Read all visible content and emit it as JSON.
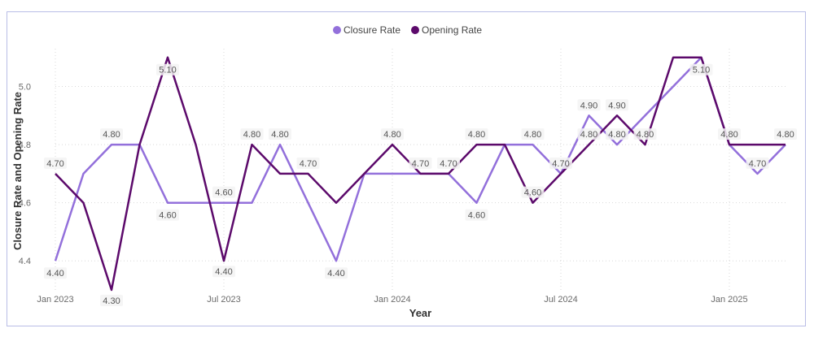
{
  "chart_data": {
    "type": "line",
    "xlabel": "Year",
    "ylabel": "Closure Rate and Opening Rate",
    "ylim": [
      4.3,
      5.13
    ],
    "y_ticks": [
      "4.4",
      "4.6",
      "4.8",
      "5.0"
    ],
    "x_tick_labels": [
      "Jan 2023",
      "Jul 2023",
      "Jan 2024",
      "Jul 2024",
      "Jan 2025"
    ],
    "x_tick_months": [
      "2023-01",
      "2023-07",
      "2024-01",
      "2024-07",
      "2025-01"
    ],
    "x": [
      "2023-01",
      "2023-02",
      "2023-03",
      "2023-04",
      "2023-05",
      "2023-06",
      "2023-07",
      "2023-08",
      "2023-09",
      "2023-10",
      "2023-11",
      "2023-12",
      "2024-01",
      "2024-02",
      "2024-03",
      "2024-04",
      "2024-05",
      "2024-06",
      "2024-07",
      "2024-08",
      "2024-09",
      "2024-10",
      "2024-11",
      "2024-12",
      "2025-01",
      "2025-02",
      "2025-03"
    ],
    "grid": true,
    "legend_position": "top-center",
    "series": [
      {
        "name": "Closure Rate",
        "color": "#9370db",
        "values": [
          4.4,
          4.7,
          4.8,
          4.8,
          4.6,
          4.6,
          4.6,
          4.6,
          4.8,
          4.6,
          4.4,
          4.7,
          4.7,
          4.7,
          4.7,
          4.6,
          4.8,
          4.8,
          4.7,
          4.9,
          4.8,
          4.9,
          5.0,
          5.1,
          4.8,
          4.7,
          4.8
        ],
        "labels": [
          "4.40",
          "",
          "4.80",
          "",
          "4.60",
          "",
          "4.60",
          "",
          "4.80",
          "",
          "4.40",
          "",
          "",
          "",
          "4.70",
          "4.60",
          "",
          "4.80",
          "4.70",
          "4.90",
          "4.80",
          "",
          "",
          "5.10",
          "4.80",
          "4.70",
          ""
        ]
      },
      {
        "name": "Opening Rate",
        "color": "#5c0a6b",
        "values": [
          4.7,
          4.6,
          4.3,
          4.8,
          5.1,
          4.8,
          4.4,
          4.8,
          4.7,
          4.7,
          4.6,
          4.7,
          4.8,
          4.7,
          4.7,
          4.8,
          4.8,
          4.6,
          4.7,
          4.8,
          4.9,
          4.8,
          5.1,
          5.1,
          4.8,
          4.8,
          4.8
        ],
        "labels": [
          "4.70",
          "",
          "4.30",
          "",
          "5.10",
          "",
          "4.40",
          "4.80",
          "",
          "4.70",
          "",
          "",
          "4.80",
          "4.70",
          "",
          "4.80",
          "",
          "4.60",
          "",
          "4.80",
          "4.90",
          "4.80",
          "",
          "",
          "",
          "",
          "4.80"
        ]
      }
    ]
  }
}
